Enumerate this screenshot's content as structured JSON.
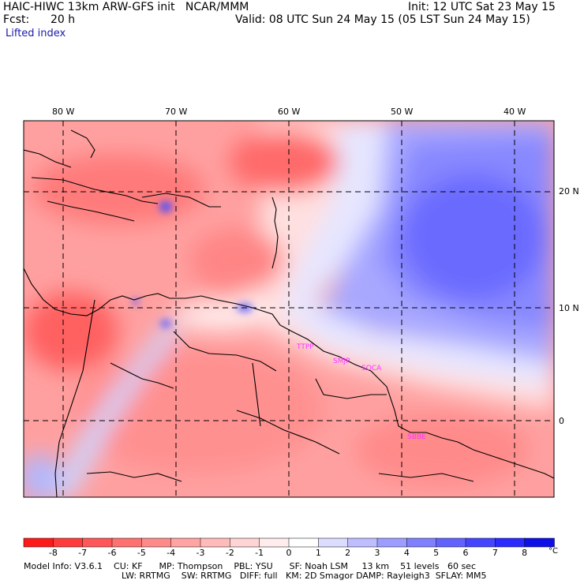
{
  "header": {
    "model_line": "HAIC-HIWC 13km ARW-GFS init   NCAR/MMM",
    "forecast_label": "Fcst:",
    "forecast_value": "20 h",
    "init_line": "Init: 12 UTC Sat 23 May 15",
    "valid_line": "Valid: 08 UTC Sun 24 May 15 (05 LST Sun 24 May 15)",
    "field": "Lifted index"
  },
  "map": {
    "longitude_labels": [
      "80 W",
      "70 W",
      "60 W",
      "50 W",
      "40 W"
    ],
    "latitude_labels": [
      "20 N",
      "10 N",
      "0"
    ],
    "stations": [
      "TTPP",
      "SMJP",
      "SOCA",
      "SBBE"
    ],
    "station_color": "#ff33ff",
    "grid_color": "#000000"
  },
  "colorbar": {
    "labels": [
      "-8",
      "-7",
      "-6",
      "-5",
      "-4",
      "-3",
      "-2",
      "-1",
      "0",
      "1",
      "2",
      "3",
      "4",
      "5",
      "6",
      "7",
      "8"
    ],
    "unit": "°C",
    "colors": [
      "#ff1a1a",
      "#ff3b3b",
      "#ff5757",
      "#ff7070",
      "#ff8a8a",
      "#ffa3a3",
      "#ffbaba",
      "#ffd4d4",
      "#ffecec",
      "#ffffff",
      "#dcdcff",
      "#bdbdff",
      "#9d9dff",
      "#8080ff",
      "#6262ff",
      "#4545ff",
      "#2a2aff",
      "#0f0fe8"
    ]
  },
  "footer": {
    "line1": "Model Info: V3.6.1    CU: KF      MP: Thompson    PBL: YSU      SF: Noah LSM     13 km    51 levels   60 sec",
    "line2": "LW: RRTMG    SW: RRTMG   DIFF: full   KM: 2D Smagor DAMP: Rayleigh3  SFLAY: MM5"
  }
}
